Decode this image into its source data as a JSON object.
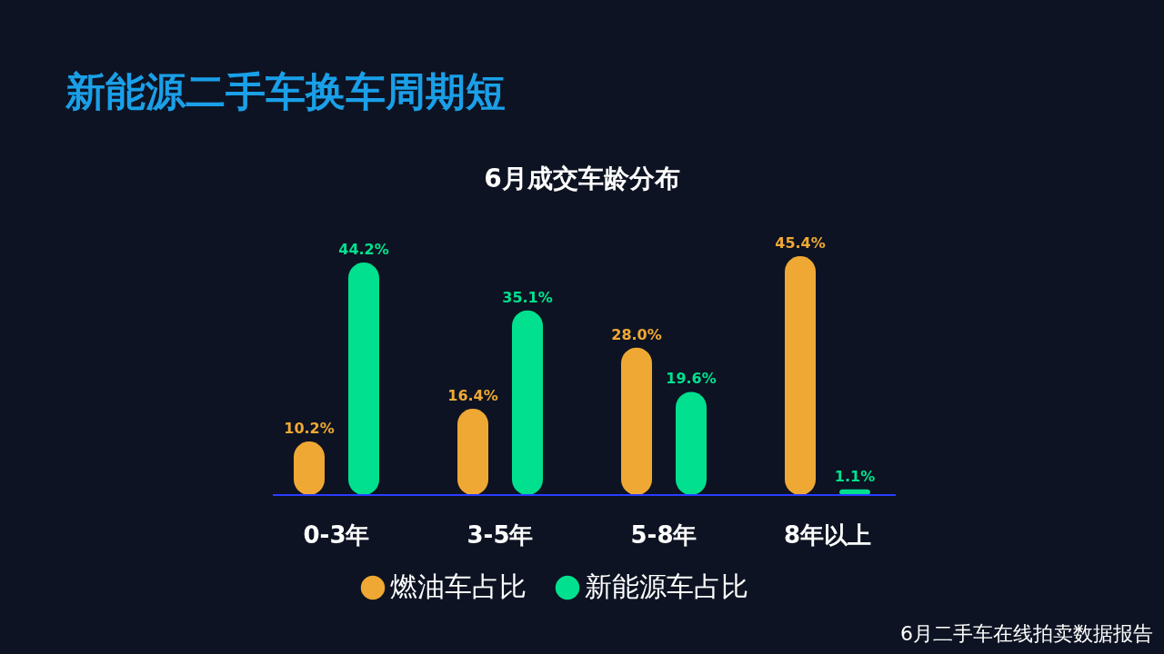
{
  "chart_data": {
    "type": "bar",
    "title": "新能源二手车换车周期短",
    "subtitle": "6月成交车龄分布",
    "categories": [
      "0-3年",
      "3-5年",
      "5-8年",
      "8年以上"
    ],
    "series": [
      {
        "name": "燃油车占比",
        "color": "#f0a834",
        "values": [
          10.2,
          16.4,
          28.0,
          45.4
        ],
        "value_labels": [
          "10.2%",
          "16.4%",
          "28.0%",
          "45.4%"
        ]
      },
      {
        "name": "新能源车占比",
        "color": "#00e08e",
        "values": [
          44.2,
          35.1,
          19.6,
          1.1
        ],
        "value_labels": [
          "44.2%",
          "35.1%",
          "19.6%",
          "1.1%"
        ]
      }
    ],
    "legend": "bottom",
    "grid": false,
    "tick_labels": "x",
    "annotations": [
      "6月二手车在线拍卖数据报告"
    ]
  }
}
